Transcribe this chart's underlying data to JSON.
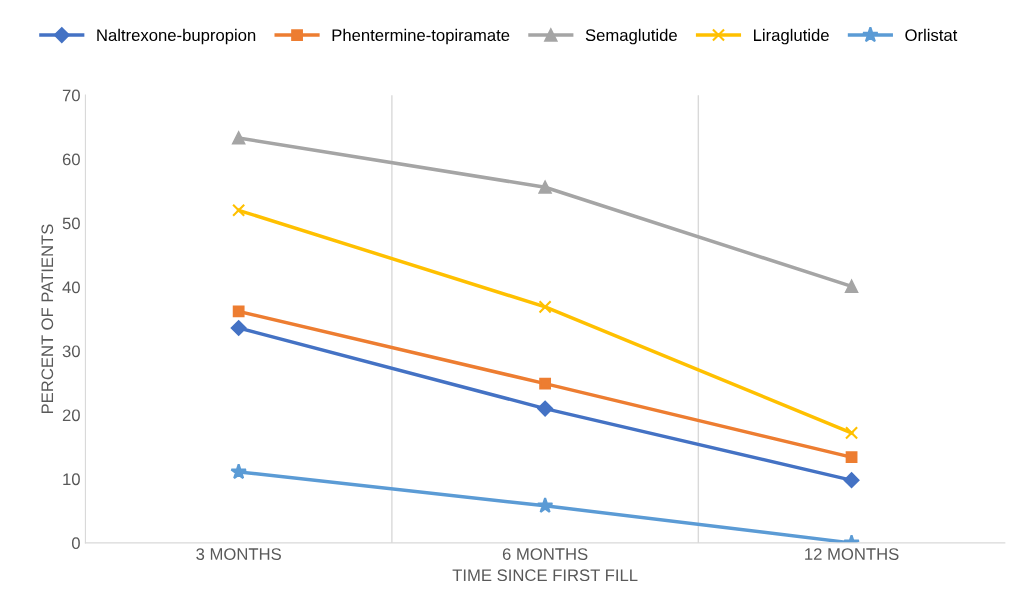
{
  "chart_data": {
    "type": "line",
    "xlabel": "TIME SINCE FIRST FILL",
    "ylabel": "PERCENT OF PATIENTS",
    "categories": [
      "3 MONTHS",
      "6 MONTHS",
      "12 MONTHS"
    ],
    "series": [
      {
        "name": "Naltrexone-bupropion",
        "color": "#4472c4",
        "marker": "diamond",
        "values": [
          33.6,
          21.0,
          9.8
        ]
      },
      {
        "name": "Phentermine-topiramate",
        "color": "#ed7d31",
        "marker": "square",
        "values": [
          36.2,
          24.9,
          13.4
        ]
      },
      {
        "name": "Semaglutide",
        "color": "#a5a5a5",
        "marker": "triangle",
        "values": [
          63.3,
          55.6,
          40.1
        ]
      },
      {
        "name": "Liraglutide",
        "color": "#ffc000",
        "marker": "cross",
        "values": [
          52.0,
          36.9,
          17.2
        ]
      },
      {
        "name": "Orlistat",
        "color": "#5b9bd5",
        "marker": "star",
        "values": [
          11.1,
          5.8,
          0
        ]
      }
    ],
    "ylim": [
      0,
      70
    ],
    "yticks": [
      0,
      10,
      20,
      30,
      40,
      50,
      60,
      70
    ],
    "grid": "x",
    "legend": "top",
    "line_style": "solid"
  }
}
